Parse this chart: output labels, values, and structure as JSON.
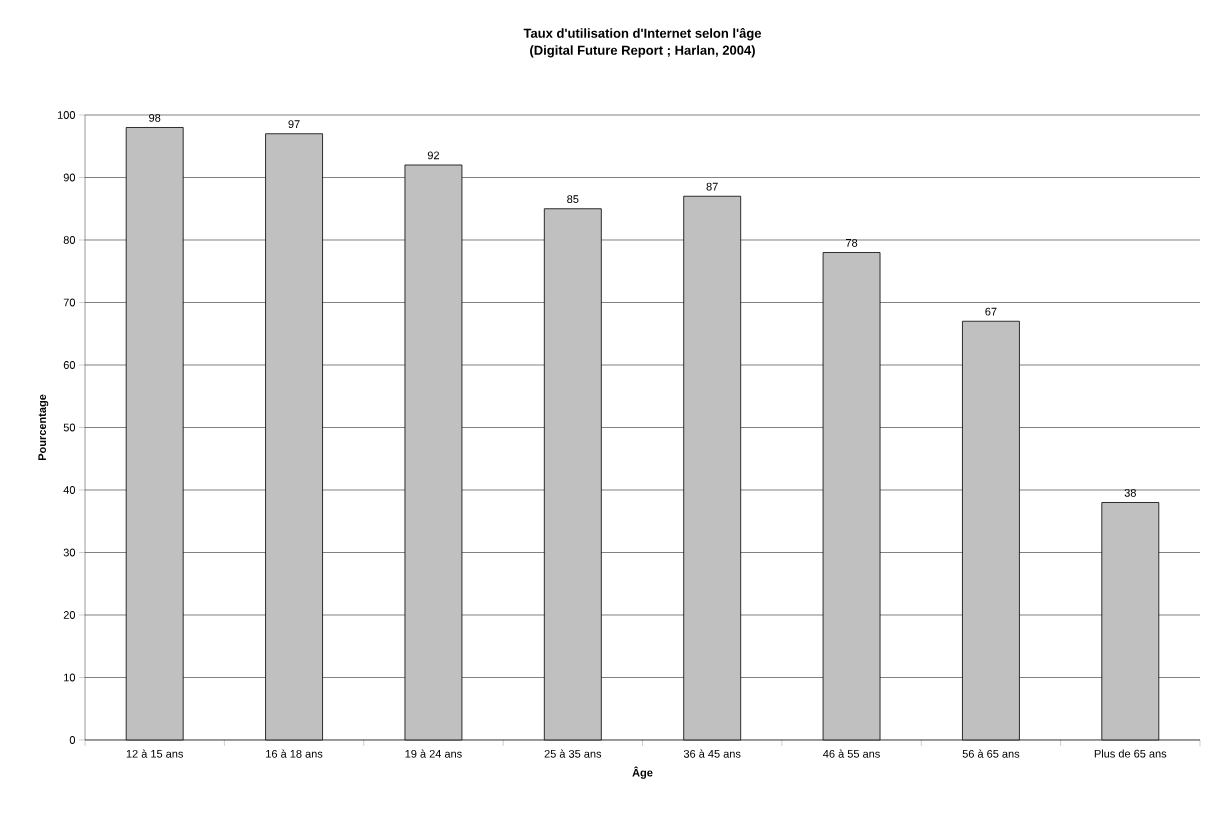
{
  "chart_data": {
    "type": "bar",
    "title": "Taux d'utilisation d'Internet selon l'âge",
    "subtitle": "(Digital Future Report ; Harlan, 2004)",
    "xlabel": "Âge",
    "ylabel": "Pourcentage",
    "categories": [
      "12 à 15 ans",
      "16 à 18 ans",
      "19 à 24 ans",
      "25 à 35 ans",
      "36 à 45 ans",
      "46 à 55 ans",
      "56 à 65 ans",
      "Plus de 65 ans"
    ],
    "values": [
      98,
      97,
      92,
      85,
      87,
      78,
      67,
      38
    ],
    "color": "#c0c0c0",
    "ylim": [
      0,
      100
    ],
    "yticks": [
      0,
      10,
      20,
      30,
      40,
      50,
      60,
      70,
      80,
      90,
      100
    ],
    "grid": "y",
    "data_labels": true
  }
}
